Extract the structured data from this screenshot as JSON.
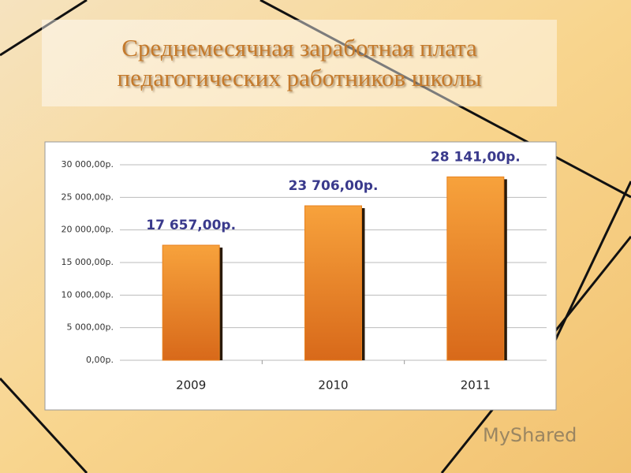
{
  "chart_data": {
    "type": "bar",
    "title": "Среднемесячная заработная плата педагогических работников школы",
    "categories": [
      "2009",
      "2010",
      "2011"
    ],
    "values": [
      17657,
      23706,
      28141
    ],
    "value_labels": [
      "17 657,00р.",
      "23 706,00р.",
      "28 141,00р."
    ],
    "color": "#e8821e",
    "ylim": [
      0,
      30000
    ],
    "yticks": [
      {
        "value": 0,
        "label": "0,00р."
      },
      {
        "value": 5000,
        "label": "5 000,00р."
      },
      {
        "value": 10000,
        "label": "10 000,00р."
      },
      {
        "value": 15000,
        "label": "15 000,00р."
      },
      {
        "value": 20000,
        "label": "20 000,00р."
      },
      {
        "value": 25000,
        "label": "25 000,00р."
      },
      {
        "value": 30000,
        "label": "30 000,00р."
      }
    ],
    "grid": true
  },
  "watermark": "MyShared"
}
